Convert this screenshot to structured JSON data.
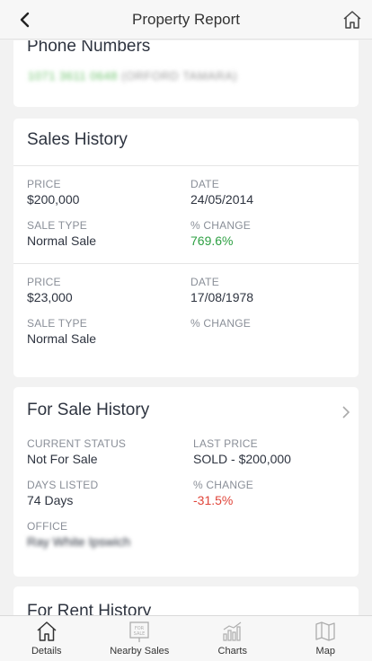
{
  "header": {
    "title": "Property Report"
  },
  "phone": {
    "title": "Phone Numbers",
    "number_green": "1071 3611 0648",
    "number_grey": "(ORFORD TAMARA)"
  },
  "sales_history": {
    "title": "Sales History",
    "records": [
      {
        "price_label": "PRICE",
        "price": "$200,000",
        "date_label": "DATE",
        "date": "24/05/2014",
        "type_label": "SALE TYPE",
        "type": "Normal Sale",
        "change_label": "% CHANGE",
        "change": "769.6%"
      },
      {
        "price_label": "PRICE",
        "price": "$23,000",
        "date_label": "DATE",
        "date": "17/08/1978",
        "type_label": "SALE TYPE",
        "type": "Normal Sale",
        "change_label": "% CHANGE",
        "change": ""
      }
    ]
  },
  "for_sale_history": {
    "title": "For Sale History",
    "current_status_label": "CURRENT STATUS",
    "current_status": "Not For Sale",
    "last_price_label": "LAST PRICE",
    "last_price": "SOLD - $200,000",
    "days_listed_label": "DAYS LISTED",
    "days_listed": "74 Days",
    "change_label": "% CHANGE",
    "change": "-31.5%",
    "office_label": "OFFICE",
    "office": "Ray White Ipswich"
  },
  "for_rent_history": {
    "title": "For Rent History"
  },
  "tabbar": {
    "tabs": [
      {
        "label": "Details",
        "icon": "home-icon"
      },
      {
        "label": "Nearby Sales",
        "icon": "for-sale-sign-icon"
      },
      {
        "label": "Charts",
        "icon": "bar-chart-icon"
      },
      {
        "label": "Map",
        "icon": "map-icon"
      }
    ],
    "for_sale_sign_text": "FOR SALE"
  },
  "colors": {
    "positive": "#2ea043",
    "negative": "#e0453a",
    "accent_green": "#6cc26c"
  }
}
